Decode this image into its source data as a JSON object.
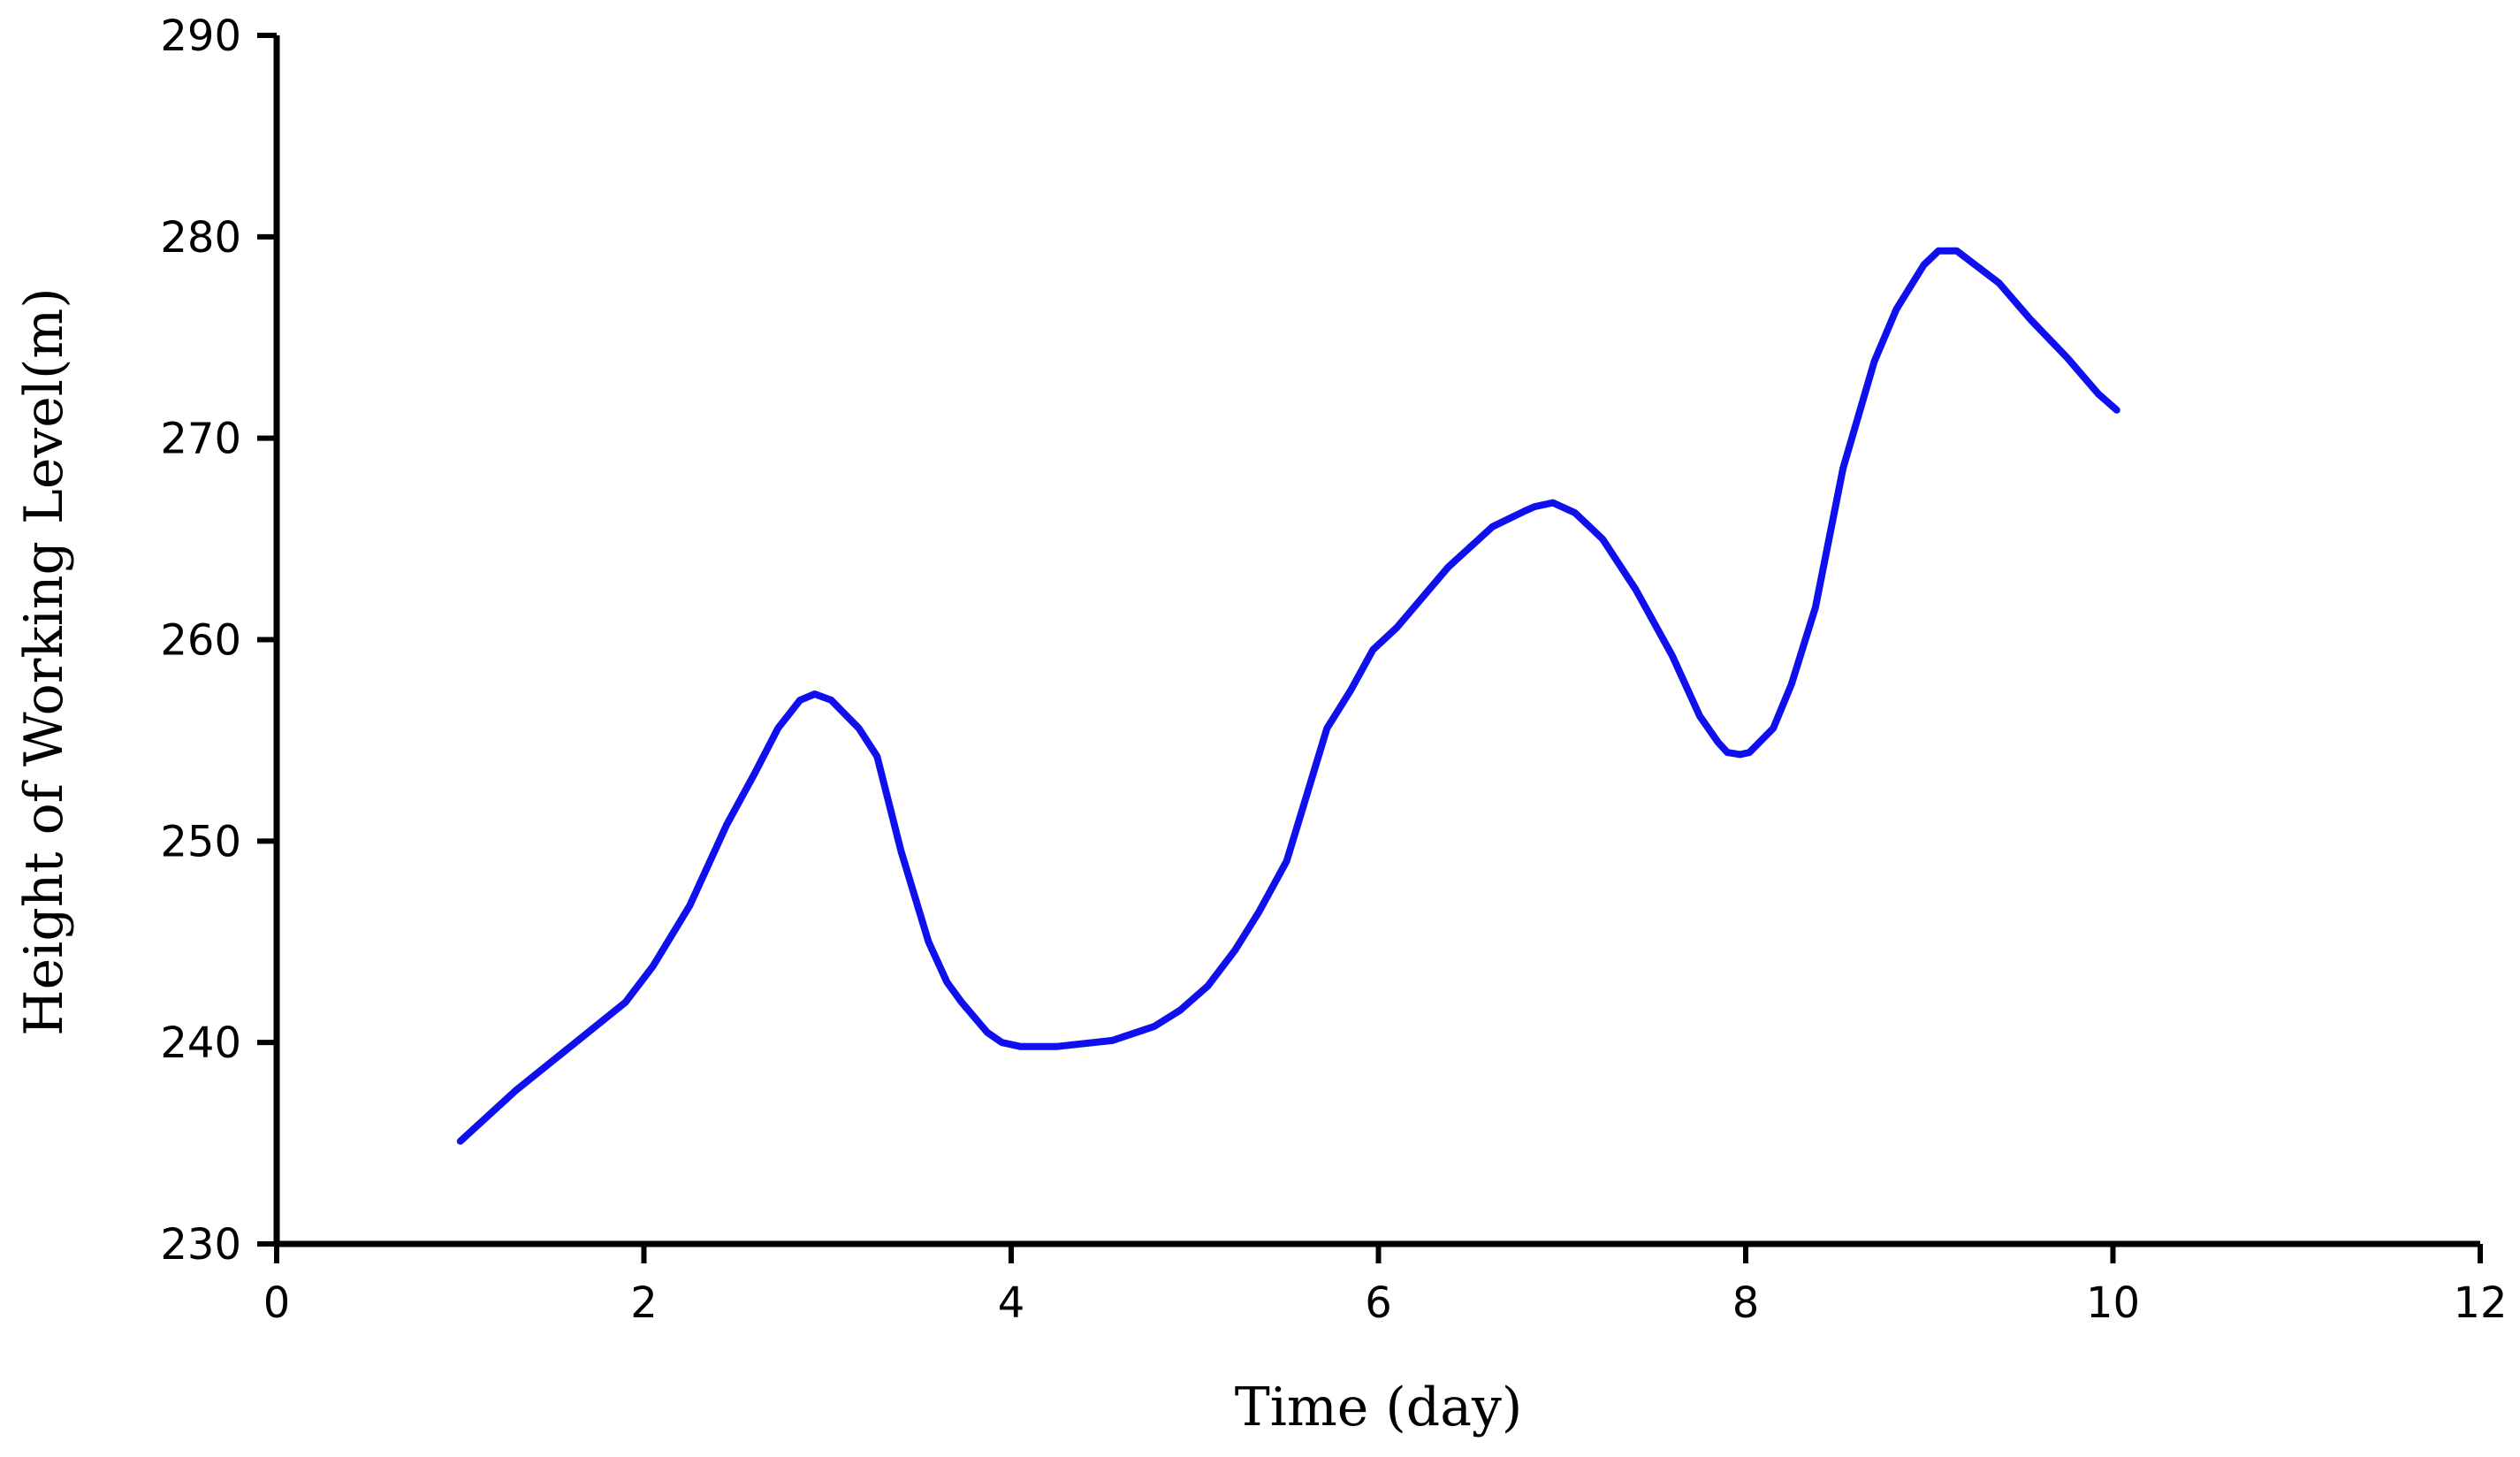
{
  "chart_data": {
    "type": "line",
    "title": "",
    "xlabel": "Time (day)",
    "ylabel": "Height of Working Level(m)",
    "xlim": [
      0,
      12
    ],
    "ylim": [
      230,
      290
    ],
    "x_ticks": [
      "0",
      "2",
      "4",
      "6",
      "8",
      "10",
      "12"
    ],
    "y_ticks": [
      "230",
      "240",
      "250",
      "260",
      "270",
      "280",
      "290"
    ],
    "grid": false,
    "legend": "none",
    "series": [
      {
        "color": "#1010ee",
        "x": [
          1.0,
          1.3,
          1.6,
          1.9,
          2.05,
          2.25,
          2.45,
          2.6,
          2.73,
          2.85,
          2.93,
          3.02,
          3.17,
          3.27,
          3.4,
          3.55,
          3.65,
          3.73,
          3.87,
          3.95,
          4.05,
          4.25,
          4.55,
          4.78,
          4.92,
          5.07,
          5.22,
          5.35,
          5.5,
          5.6,
          5.72,
          5.85,
          5.97,
          6.1,
          6.38,
          6.62,
          6.8,
          6.85,
          6.95,
          7.07,
          7.22,
          7.4,
          7.6,
          7.75,
          7.85,
          7.9,
          7.97,
          8.02,
          8.15,
          8.25,
          8.38,
          8.53,
          8.7,
          8.82,
          8.97,
          9.05,
          9.15,
          9.38,
          9.55,
          9.75,
          9.92,
          10.02
        ],
        "y": [
          235.1,
          237.6,
          239.8,
          242.0,
          243.8,
          246.8,
          250.8,
          253.3,
          255.6,
          257.0,
          257.3,
          257.0,
          255.6,
          254.2,
          249.5,
          245.0,
          243.0,
          242.0,
          240.5,
          240.0,
          239.8,
          239.8,
          240.1,
          240.8,
          241.6,
          242.8,
          244.6,
          246.5,
          249.0,
          252.0,
          255.6,
          257.5,
          259.5,
          260.6,
          263.6,
          265.6,
          266.4,
          266.6,
          266.8,
          266.3,
          265.0,
          262.5,
          259.2,
          256.2,
          254.9,
          254.4,
          254.3,
          254.4,
          255.6,
          257.8,
          261.6,
          268.5,
          273.8,
          276.4,
          278.6,
          279.3,
          279.3,
          277.7,
          275.9,
          274.0,
          272.2,
          271.4
        ]
      }
    ]
  }
}
